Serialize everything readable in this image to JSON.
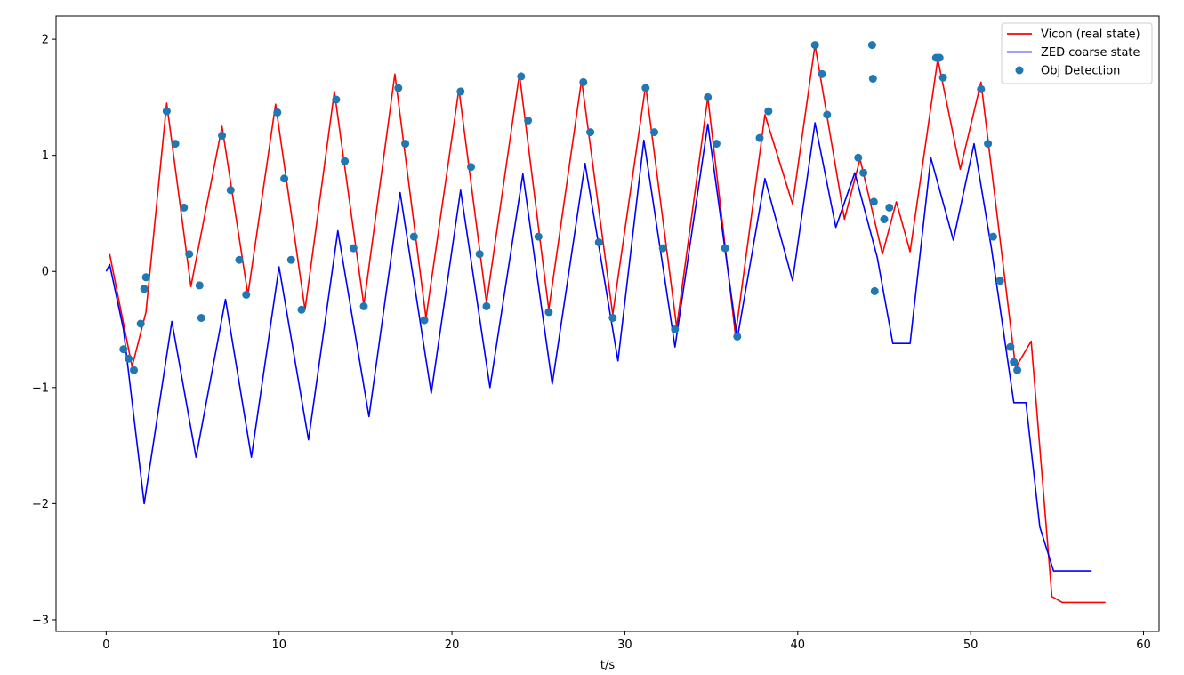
{
  "chart_data": {
    "type": "line",
    "title": "",
    "xlabel": "t/s",
    "ylabel": "",
    "xlim": [
      -2.9,
      60.9
    ],
    "ylim": [
      -3.1,
      2.2
    ],
    "xticks": [
      0,
      10,
      20,
      30,
      40,
      50,
      60
    ],
    "xtick_labels": [
      "0",
      "10",
      "20",
      "30",
      "40",
      "50",
      "60"
    ],
    "yticks": [
      -3,
      -2,
      -1,
      0,
      1,
      2
    ],
    "ytick_labels": [
      "−3",
      "−2",
      "−1",
      "0",
      "1",
      "2"
    ],
    "grid": false,
    "legend_position": "top-right",
    "series": [
      {
        "name": "Vicon (real state)",
        "kind": "line",
        "color": "#ff0000",
        "x": [
          0.2,
          1.5,
          2.3,
          3.5,
          4.9,
          6.7,
          8.2,
          9.8,
          11.5,
          13.2,
          14.9,
          16.7,
          18.5,
          20.4,
          22.0,
          23.9,
          25.6,
          27.5,
          29.3,
          31.2,
          33.0,
          34.8,
          36.4,
          38.1,
          39.7,
          41.0,
          42.7,
          43.6,
          44.9,
          45.7,
          46.5,
          48.1,
          49.4,
          50.6,
          52.6,
          53.5,
          54.7,
          55.3,
          57.8
        ],
        "y": [
          0.15,
          -0.82,
          -0.35,
          1.45,
          -0.13,
          1.25,
          -0.2,
          1.44,
          -0.33,
          1.55,
          -0.29,
          1.7,
          -0.4,
          1.57,
          -0.27,
          1.7,
          -0.33,
          1.65,
          -0.37,
          1.6,
          -0.48,
          1.5,
          -0.55,
          1.35,
          0.58,
          1.95,
          0.45,
          0.97,
          0.15,
          0.6,
          0.17,
          1.83,
          0.88,
          1.63,
          -0.83,
          -0.6,
          -2.8,
          -2.85,
          -2.85
        ]
      },
      {
        "name": "ZED coarse state",
        "kind": "line",
        "color": "#0000ff",
        "x": [
          0.0,
          0.2,
          1.0,
          2.2,
          3.8,
          5.2,
          6.9,
          8.4,
          10.0,
          11.7,
          13.4,
          15.2,
          17.0,
          18.8,
          20.5,
          22.2,
          24.1,
          25.8,
          27.7,
          29.6,
          31.1,
          32.9,
          34.8,
          36.5,
          38.1,
          39.7,
          41.0,
          42.2,
          43.3,
          44.6,
          45.5,
          46.5,
          47.7,
          49.0,
          50.2,
          51.2,
          52.5,
          53.2,
          54.0,
          54.8,
          57.0
        ],
        "y": [
          0.0,
          0.06,
          -0.5,
          -2.0,
          -0.43,
          -1.6,
          -0.24,
          -1.6,
          0.04,
          -1.45,
          0.35,
          -1.25,
          0.68,
          -1.05,
          0.7,
          -1.0,
          0.84,
          -0.97,
          0.93,
          -0.77,
          1.13,
          -0.65,
          1.27,
          -0.58,
          0.8,
          -0.08,
          1.28,
          0.38,
          0.85,
          0.12,
          -0.62,
          -0.62,
          0.98,
          0.27,
          1.1,
          0.2,
          -1.13,
          -1.13,
          -2.2,
          -2.58,
          -2.58
        ]
      },
      {
        "name": "Obj Detection",
        "kind": "scatter",
        "color": "#1f77b4",
        "x": [
          1.0,
          1.3,
          1.6,
          2.0,
          2.2,
          2.3,
          3.5,
          4.0,
          4.5,
          4.8,
          5.4,
          5.5,
          6.7,
          7.2,
          7.7,
          8.1,
          9.9,
          10.3,
          10.7,
          11.3,
          13.3,
          13.8,
          14.3,
          14.9,
          16.9,
          17.3,
          17.8,
          18.4,
          20.5,
          21.1,
          21.6,
          22.0,
          24.0,
          24.4,
          25.0,
          25.6,
          27.6,
          28.0,
          28.5,
          29.3,
          31.2,
          31.7,
          32.2,
          32.9,
          34.8,
          35.3,
          35.8,
          36.5,
          37.8,
          38.3,
          41.0,
          41.4,
          41.7,
          43.5,
          43.8,
          44.3,
          44.35,
          44.4,
          44.45,
          45.0,
          45.3,
          48.0,
          48.2,
          48.4,
          50.6,
          51.0,
          51.3,
          51.7,
          52.3,
          52.5,
          52.7
        ],
        "y": [
          -0.67,
          -0.75,
          -0.85,
          -0.45,
          -0.15,
          -0.05,
          1.38,
          1.1,
          0.55,
          0.15,
          -0.12,
          -0.4,
          1.17,
          0.7,
          0.1,
          -0.2,
          1.37,
          0.8,
          0.1,
          -0.33,
          1.48,
          0.95,
          0.2,
          -0.3,
          1.58,
          1.1,
          0.3,
          -0.42,
          1.55,
          0.9,
          0.15,
          -0.3,
          1.68,
          1.3,
          0.3,
          -0.35,
          1.63,
          1.2,
          0.25,
          -0.4,
          1.58,
          1.2,
          0.2,
          -0.5,
          1.5,
          1.1,
          0.2,
          -0.56,
          1.15,
          1.38,
          1.95,
          1.7,
          1.35,
          0.98,
          0.85,
          1.95,
          1.66,
          0.6,
          -0.17,
          0.45,
          0.55,
          1.84,
          1.84,
          1.67,
          1.57,
          1.1,
          0.3,
          -0.08,
          -0.65,
          -0.78,
          -0.85
        ]
      }
    ]
  }
}
